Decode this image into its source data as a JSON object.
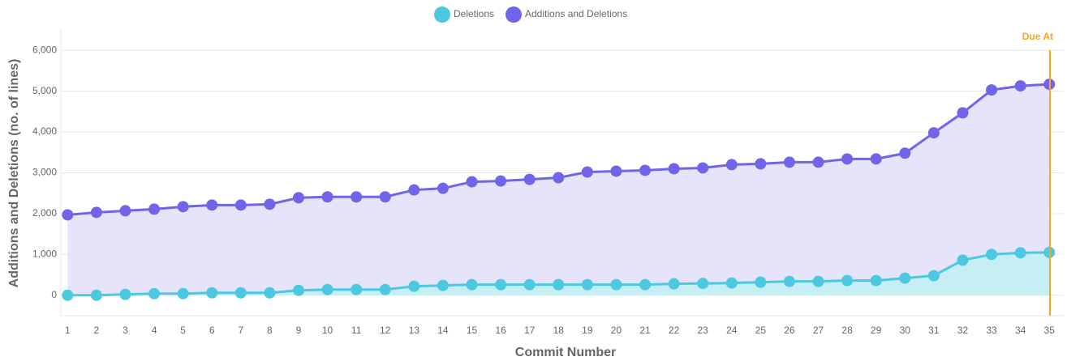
{
  "chart_data": {
    "type": "line",
    "x_label": "Commit Number",
    "y_label": "Additions and Deletions (no. of lines)",
    "categories": [
      "1",
      "2",
      "3",
      "4",
      "5",
      "6",
      "7",
      "8",
      "9",
      "10",
      "11",
      "12",
      "13",
      "14",
      "15",
      "16",
      "17",
      "18",
      "19",
      "20",
      "21",
      "22",
      "23",
      "24",
      "25",
      "26",
      "27",
      "28",
      "29",
      "30",
      "31",
      "32",
      "33",
      "34",
      "35"
    ],
    "series": [
      {
        "name": "Deletions",
        "color": "#4cc9e0",
        "fill": "#c6eef5",
        "values": [
          0,
          0,
          20,
          40,
          40,
          60,
          60,
          60,
          120,
          140,
          140,
          140,
          220,
          240,
          260,
          260,
          260,
          260,
          260,
          260,
          260,
          280,
          290,
          300,
          320,
          340,
          340,
          360,
          360,
          420,
          480,
          860,
          1000,
          1040,
          1050
        ]
      },
      {
        "name": "Additions and Deletions",
        "color": "#7064e8",
        "fill": "#e6e4fb",
        "values": [
          1970,
          2030,
          2070,
          2110,
          2170,
          2210,
          2210,
          2230,
          2390,
          2410,
          2410,
          2410,
          2580,
          2620,
          2780,
          2800,
          2840,
          2880,
          3020,
          3040,
          3060,
          3100,
          3120,
          3200,
          3220,
          3260,
          3260,
          3340,
          3340,
          3480,
          3980,
          4470,
          5030,
          5130,
          5170
        ]
      }
    ],
    "ylim": [
      -500,
      6500
    ],
    "yticks": [
      {
        "value": 0,
        "label": "0"
      },
      {
        "value": 1000,
        "label": "1,000"
      },
      {
        "value": 2000,
        "label": "2,000"
      },
      {
        "value": 3000,
        "label": "3,000"
      },
      {
        "value": 4000,
        "label": "4,000"
      },
      {
        "value": 5000,
        "label": "5,000"
      },
      {
        "value": 6000,
        "label": "6,000"
      }
    ],
    "grid": true,
    "annotation": {
      "label": "Due At",
      "color": "#f5a623"
    }
  }
}
